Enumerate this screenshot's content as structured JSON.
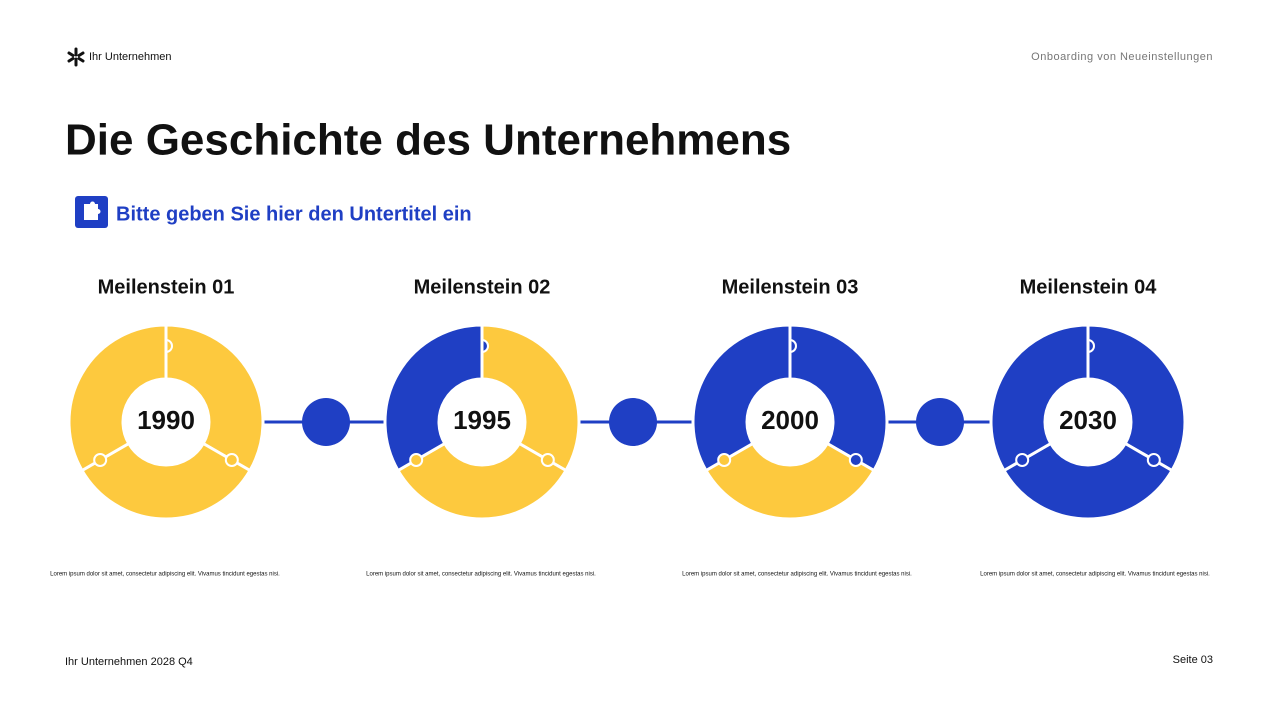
{
  "header": {
    "brand": "Ihr Unternehmen",
    "topic": "Onboarding von Neueinstellungen"
  },
  "title": "Die Geschichte des Unternehmens",
  "subtitle": "Bitte geben Sie hier den Untertitel ein",
  "milestones": [
    {
      "label": "Meilenstein 01",
      "year": "1990",
      "text": "Lorem ipsum dolor sit amet, consectetur adipiscing elit. Vivamus tincidunt egestas nisi."
    },
    {
      "label": "Meilenstein 02",
      "year": "1995",
      "text": "Lorem ipsum dolor sit amet, consectetur adipiscing elit. Vivamus tincidunt egestas nisi."
    },
    {
      "label": "Meilenstein 03",
      "year": "2000",
      "text": "Lorem ipsum dolor sit amet, consectetur adipiscing elit. Vivamus tincidunt egestas nisi."
    },
    {
      "label": "Meilenstein 04",
      "year": "2030",
      "text": "Lorem ipsum dolor sit amet, consectetur adipiscing elit. Vivamus tincidunt egestas nisi."
    }
  ],
  "footer": {
    "left": "Ihr Unternehmen 2028 Q4",
    "right": "Seite 03"
  }
}
